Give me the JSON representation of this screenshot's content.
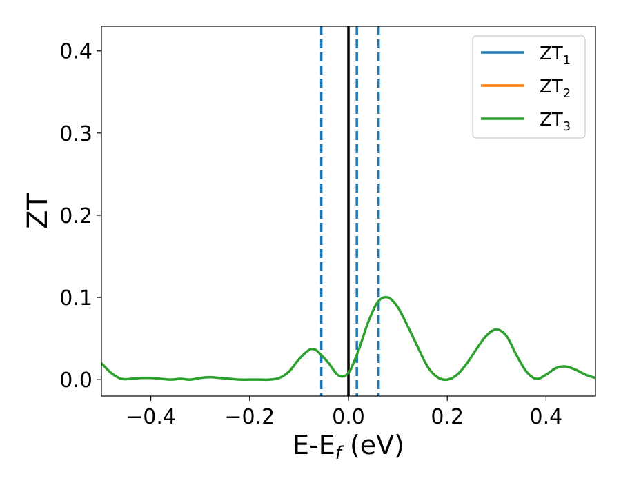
{
  "chart_data": {
    "type": "line",
    "xlabel": {
      "base": "E-E",
      "sub": "f",
      "unit": " (eV)"
    },
    "ylabel": "ZT",
    "xlim": [
      -0.5,
      0.5
    ],
    "ylim": [
      -0.02,
      0.43
    ],
    "xticks": [
      -0.4,
      -0.2,
      0.0,
      0.2,
      0.4
    ],
    "xtick_labels": [
      "−0.4",
      "−0.2",
      "0.0",
      "0.2",
      "0.4"
    ],
    "yticks": [
      0.0,
      0.1,
      0.2,
      0.3,
      0.4
    ],
    "ytick_labels": [
      "0.0",
      "0.1",
      "0.2",
      "0.3",
      "0.4"
    ],
    "grid": false,
    "legend_position": "top-right",
    "series": [
      {
        "name": "ZT",
        "sub": "1",
        "color": "#1f77b4",
        "x": [],
        "y": []
      },
      {
        "name": "ZT",
        "sub": "2",
        "color": "#ff7f0e",
        "x": [],
        "y": []
      },
      {
        "name": "ZT",
        "sub": "3",
        "color": "#2ca02c",
        "x": [
          -0.5,
          -0.48,
          -0.46,
          -0.44,
          -0.42,
          -0.4,
          -0.38,
          -0.36,
          -0.34,
          -0.32,
          -0.3,
          -0.28,
          -0.26,
          -0.24,
          -0.22,
          -0.2,
          -0.18,
          -0.16,
          -0.14,
          -0.12,
          -0.1,
          -0.08,
          -0.07,
          -0.06,
          -0.04,
          -0.02,
          0.0,
          0.02,
          0.04,
          0.06,
          0.08,
          0.1,
          0.12,
          0.14,
          0.16,
          0.18,
          0.2,
          0.22,
          0.24,
          0.26,
          0.28,
          0.3,
          0.32,
          0.34,
          0.36,
          0.38,
          0.4,
          0.42,
          0.44,
          0.46,
          0.48,
          0.5
        ],
        "y": [
          0.02,
          0.008,
          0.001,
          0.001,
          0.002,
          0.002,
          0.001,
          0.0,
          0.001,
          0.0,
          0.002,
          0.003,
          0.002,
          0.001,
          0.0,
          0.0,
          0.0,
          0.0,
          0.002,
          0.01,
          0.025,
          0.036,
          0.037,
          0.033,
          0.02,
          0.005,
          0.008,
          0.035,
          0.07,
          0.095,
          0.1,
          0.088,
          0.065,
          0.04,
          0.016,
          0.003,
          0.0,
          0.006,
          0.02,
          0.038,
          0.054,
          0.061,
          0.053,
          0.03,
          0.01,
          0.001,
          0.006,
          0.014,
          0.016,
          0.012,
          0.006,
          0.002
        ]
      }
    ],
    "reference_lines": [
      {
        "x": 0.0,
        "style": "solid",
        "color": "#000000"
      },
      {
        "x": -0.055,
        "style": "dashed",
        "color": "#1f77b4"
      },
      {
        "x": 0.017,
        "style": "dashed",
        "color": "#1f77b4"
      },
      {
        "x": 0.061,
        "style": "dashed",
        "color": "#1f77b4"
      }
    ]
  }
}
